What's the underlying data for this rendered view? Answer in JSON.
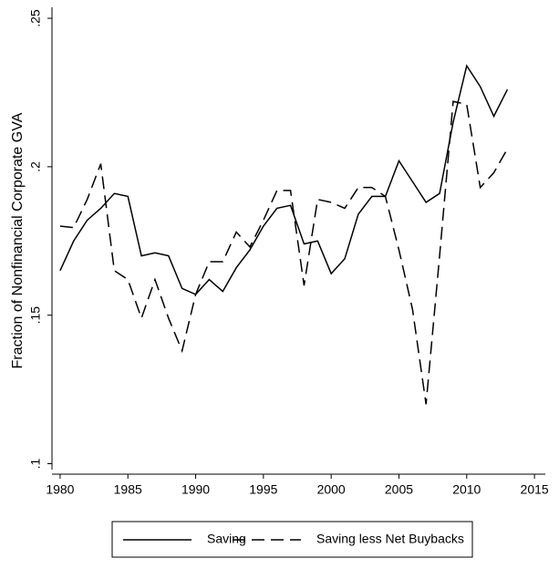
{
  "chart_data": {
    "type": "line",
    "y_label": "Fraction of Nonfinancial Corporate GVA",
    "x": [
      1980,
      1981,
      1982,
      1983,
      1984,
      1985,
      1986,
      1987,
      1988,
      1989,
      1990,
      1991,
      1992,
      1993,
      1994,
      1995,
      1996,
      1997,
      1998,
      1999,
      2000,
      2001,
      2002,
      2003,
      2004,
      2005,
      2006,
      2007,
      2008,
      2009,
      2010,
      2011,
      2012,
      2013
    ],
    "series": [
      {
        "name": "Saving",
        "color": "#000000",
        "line_style": "solid",
        "values": [
          0.165,
          0.175,
          0.182,
          0.186,
          0.191,
          0.19,
          0.17,
          0.171,
          0.17,
          0.159,
          0.157,
          0.162,
          0.158,
          0.166,
          0.172,
          0.18,
          0.186,
          0.187,
          0.174,
          0.175,
          0.164,
          0.169,
          0.184,
          0.19,
          0.19,
          0.202,
          0.195,
          0.188,
          0.191,
          0.215,
          0.234,
          0.227,
          0.217,
          0.226
        ]
      },
      {
        "name": "Saving less Net Buybacks",
        "color": "#000000",
        "line_style": "dashed",
        "values": [
          0.18,
          0.1795,
          0.189,
          0.201,
          0.165,
          0.162,
          0.149,
          0.162,
          0.149,
          0.138,
          0.157,
          0.168,
          0.168,
          0.178,
          0.173,
          0.182,
          0.192,
          0.192,
          0.16,
          0.189,
          0.188,
          0.186,
          0.193,
          0.193,
          0.19,
          0.172,
          0.152,
          0.12,
          0.17,
          0.222,
          0.221,
          0.193,
          0.198,
          0.206
        ]
      }
    ],
    "xlim": [
      1979.4,
      2015.8
    ],
    "xticks": [
      1980,
      1985,
      1990,
      1995,
      2000,
      2005,
      2010,
      2015
    ],
    "ylim": [
      0.098,
      0.2537
    ],
    "yticks": [
      {
        "value": 0.1,
        "label": ".1"
      },
      {
        "value": 0.15,
        "label": ".15"
      },
      {
        "value": 0.2,
        "label": ".2"
      },
      {
        "value": 0.25,
        "label": ".25"
      }
    ],
    "grid": false,
    "legend": "bottom"
  }
}
